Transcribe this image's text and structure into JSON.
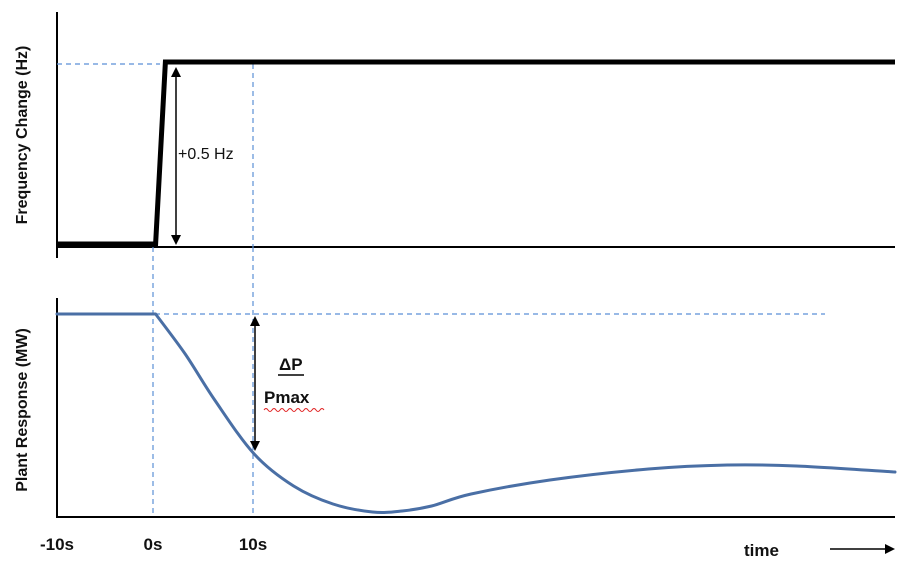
{
  "chart_data": [
    {
      "type": "line",
      "ylabel": "Frequency Change (Hz)",
      "x_ticks": [
        "-10s",
        "0s",
        "10s"
      ],
      "series": [
        {
          "x": [
            -10,
            0,
            1,
            75
          ],
          "y": [
            0,
            0,
            0.5,
            0.5
          ]
        }
      ],
      "xlim": [
        -10,
        75
      ],
      "ylim": [
        0,
        0.5
      ],
      "annotations": [
        {
          "text": "+0.5 Hz",
          "type": "double-arrow",
          "x": 2,
          "from": 0,
          "to": 0.5
        }
      ],
      "reference_lines": [
        {
          "orientation": "horizontal",
          "y": 0.5,
          "style": "dashed"
        },
        {
          "orientation": "vertical",
          "x": 10,
          "style": "dashed"
        }
      ]
    },
    {
      "type": "line",
      "ylabel": "Plant Response (MW)",
      "x_ticks": [
        "-10s",
        "0s",
        "10s"
      ],
      "xlabel": "time",
      "series": [
        {
          "x": [
            -10,
            0,
            3,
            6,
            10,
            14,
            18,
            22,
            25,
            28,
            32,
            40,
            50,
            58,
            65,
            75
          ],
          "y": [
            1.0,
            1.0,
            0.8,
            0.57,
            0.3,
            0.14,
            0.05,
            0.01,
            0.015,
            0.04,
            0.1,
            0.17,
            0.225,
            0.245,
            0.24,
            0.21
          ]
        }
      ],
      "xlim": [
        -10,
        75
      ],
      "ylim": [
        0,
        1.0
      ],
      "annotations": [
        {
          "text": "ΔP",
          "underline": true
        },
        {
          "text": "Pmax"
        }
      ],
      "reference_lines": [
        {
          "orientation": "horizontal",
          "y": 1.0,
          "style": "dashed"
        },
        {
          "orientation": "vertical",
          "x": 0,
          "style": "dashed"
        },
        {
          "orientation": "vertical",
          "x": 10,
          "style": "dashed"
        }
      ]
    }
  ],
  "colors": {
    "step": "#000000",
    "response": "#4a6fa5",
    "guide": "#5b8fd6",
    "axis": "#000000"
  },
  "time_arrow_icon": "right-arrow-icon"
}
